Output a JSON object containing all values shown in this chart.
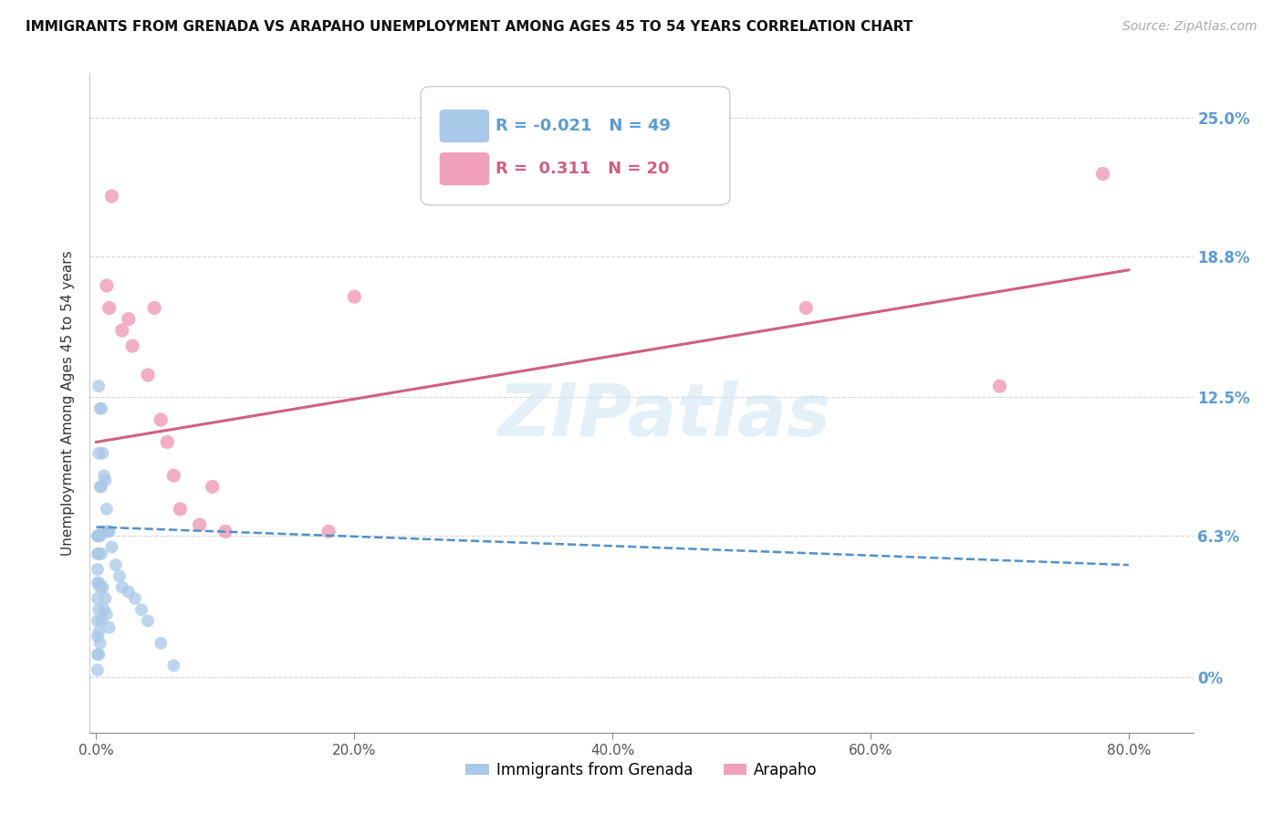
{
  "title": "IMMIGRANTS FROM GRENADA VS ARAPAHO UNEMPLOYMENT AMONG AGES 45 TO 54 YEARS CORRELATION CHART",
  "source": "Source: ZipAtlas.com",
  "ylabel": "Unemployment Among Ages 45 to 54 years",
  "R_grenada": "-0.021",
  "N_grenada": "49",
  "R_arapaho": "0.311",
  "N_arapaho": "20",
  "legend_grenada_label": "Immigrants from Grenada",
  "legend_arapaho_label": "Arapaho",
  "ytick_labels": [
    "0%",
    "6.3%",
    "12.5%",
    "18.8%",
    "25.0%"
  ],
  "ytick_values": [
    0,
    0.063,
    0.125,
    0.188,
    0.25
  ],
  "xtick_labels": [
    "0.0%",
    "20.0%",
    "40.0%",
    "60.0%",
    "80.0%"
  ],
  "xtick_values": [
    0,
    0.2,
    0.4,
    0.6,
    0.8
  ],
  "xlim": [
    -0.005,
    0.85
  ],
  "ylim": [
    -0.025,
    0.27
  ],
  "blue_color": "#a8c8e8",
  "pink_color": "#f0a0b8",
  "blue_line_color": "#5090c8",
  "pink_line_color": "#d06080",
  "watermark": "ZIPatlas",
  "grenada_x": [
    0.001,
    0.001,
    0.001,
    0.001,
    0.001,
    0.001,
    0.001,
    0.001,
    0.001,
    0.001,
    0.002,
    0.002,
    0.002,
    0.002,
    0.002,
    0.002,
    0.002,
    0.002,
    0.003,
    0.003,
    0.003,
    0.003,
    0.003,
    0.004,
    0.004,
    0.004,
    0.004,
    0.005,
    0.005,
    0.005,
    0.006,
    0.006,
    0.007,
    0.007,
    0.008,
    0.008,
    0.009,
    0.01,
    0.01,
    0.012,
    0.015,
    0.018,
    0.02,
    0.025,
    0.03,
    0.035,
    0.04,
    0.05,
    0.06
  ],
  "grenada_y": [
    0.063,
    0.063,
    0.055,
    0.048,
    0.042,
    0.035,
    0.025,
    0.018,
    0.01,
    0.003,
    0.13,
    0.1,
    0.063,
    0.055,
    0.042,
    0.03,
    0.02,
    0.01,
    0.12,
    0.085,
    0.063,
    0.04,
    0.015,
    0.12,
    0.085,
    0.055,
    0.025,
    0.1,
    0.065,
    0.04,
    0.09,
    0.03,
    0.088,
    0.035,
    0.075,
    0.028,
    0.065,
    0.065,
    0.022,
    0.058,
    0.05,
    0.045,
    0.04,
    0.038,
    0.035,
    0.03,
    0.025,
    0.015,
    0.005
  ],
  "arapaho_x": [
    0.008,
    0.01,
    0.012,
    0.02,
    0.025,
    0.028,
    0.04,
    0.045,
    0.05,
    0.055,
    0.06,
    0.065,
    0.08,
    0.09,
    0.1,
    0.18,
    0.2,
    0.55,
    0.7,
    0.78
  ],
  "arapaho_y": [
    0.175,
    0.165,
    0.215,
    0.155,
    0.16,
    0.148,
    0.135,
    0.165,
    0.115,
    0.105,
    0.09,
    0.075,
    0.068,
    0.085,
    0.065,
    0.065,
    0.17,
    0.165,
    0.13,
    0.225
  ],
  "grenada_trend_x": [
    0.0,
    0.8
  ],
  "grenada_trend_y": [
    0.067,
    0.05
  ],
  "arapaho_trend_x": [
    0.0,
    0.8
  ],
  "arapaho_trend_y": [
    0.105,
    0.182
  ]
}
